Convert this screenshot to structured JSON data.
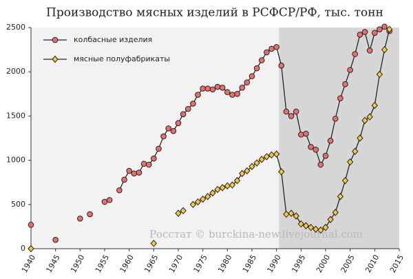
{
  "chart_data": {
    "type": "line",
    "title": "Производство мясных изделий в РСФСР/РФ, тыс. тонн",
    "annotation": "Росстат © burckina-new.livejournal.com",
    "x": [
      1940,
      1941,
      1942,
      1943,
      1944,
      1945,
      1946,
      1947,
      1948,
      1949,
      1950,
      1951,
      1952,
      1953,
      1954,
      1955,
      1956,
      1957,
      1958,
      1959,
      1960,
      1961,
      1962,
      1963,
      1964,
      1965,
      1966,
      1967,
      1968,
      1969,
      1970,
      1971,
      1972,
      1973,
      1974,
      1975,
      1976,
      1977,
      1978,
      1979,
      1980,
      1981,
      1982,
      1983,
      1984,
      1985,
      1986,
      1987,
      1988,
      1989,
      1990,
      1991,
      1992,
      1993,
      1994,
      1995,
      1996,
      1997,
      1998,
      1999,
      2000,
      2001,
      2002,
      2003,
      2004,
      2005,
      2006,
      2007,
      2008,
      2009,
      2010,
      2011,
      2012,
      2013
    ],
    "series": [
      {
        "name": "колбасные изделия",
        "color": "#e8706c",
        "marker": "circle",
        "values": [
          270,
          null,
          null,
          null,
          null,
          100,
          null,
          null,
          null,
          null,
          340,
          null,
          390,
          null,
          null,
          530,
          550,
          null,
          660,
          780,
          880,
          850,
          860,
          960,
          950,
          1020,
          1130,
          1270,
          1360,
          1330,
          1420,
          1520,
          1580,
          1640,
          1740,
          1810,
          1810,
          1800,
          1830,
          1820,
          1770,
          1740,
          1750,
          1820,
          1880,
          1950,
          2040,
          2130,
          2220,
          2260,
          2280,
          2070,
          1550,
          1500,
          1550,
          1290,
          1300,
          1150,
          1120,
          950,
          1050,
          1220,
          1470,
          1700,
          1860,
          2020,
          2200,
          2420,
          2450,
          2240,
          2440,
          2480,
          2510,
          2460
        ]
      },
      {
        "name": "мясные полуфабрикаты",
        "color": "#f5c842",
        "marker": "diamond",
        "values": [
          0,
          null,
          null,
          null,
          null,
          null,
          null,
          null,
          null,
          null,
          null,
          null,
          null,
          null,
          null,
          null,
          null,
          null,
          null,
          null,
          null,
          null,
          null,
          null,
          null,
          60,
          null,
          null,
          null,
          null,
          400,
          430,
          null,
          500,
          530,
          560,
          590,
          630,
          670,
          690,
          710,
          720,
          770,
          850,
          880,
          930,
          970,
          1010,
          1040,
          1060,
          1070,
          870,
          390,
          400,
          370,
          280,
          260,
          240,
          220,
          210,
          240,
          330,
          410,
          590,
          770,
          980,
          1100,
          1250,
          1450,
          1490,
          1620,
          1970,
          2250,
          2480
        ]
      }
    ],
    "xlim": [
      1940,
      2015
    ],
    "xticks": [
      1940,
      1945,
      1950,
      1955,
      1960,
      1965,
      1970,
      1975,
      1980,
      1985,
      1990,
      1995,
      2000,
      2005,
      2010,
      2015
    ],
    "ylim": [
      0,
      2500
    ],
    "yticks": [
      0,
      500,
      1000,
      1500,
      2000,
      2500
    ],
    "highlight_xlim": [
      1990.5,
      2015
    ],
    "legend": "upper left",
    "grid": false
  }
}
